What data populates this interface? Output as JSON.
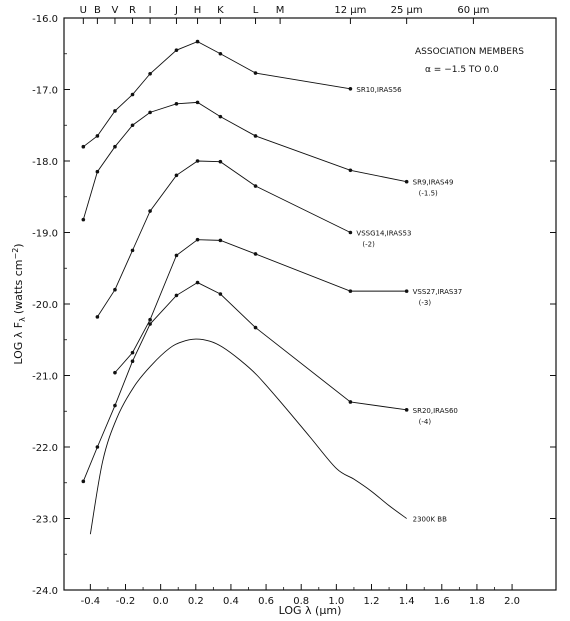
{
  "chart_data": {
    "type": "line",
    "xlabel": "LOG λ (μm)",
    "ylabel": "LOG λ F",
    "ylabel_sub": "λ",
    "ylabel_units": "(watts cm",
    "ylabel_sup": "−2",
    "ylabel_close": ")",
    "xlim": [
      -0.55,
      2.25
    ],
    "ylim": [
      -24.0,
      -16.0
    ],
    "x_ticks": [
      "-0.4",
      "-0.2",
      "0.0",
      "0.2",
      "0.4",
      "0.6",
      "0.8",
      "1.0",
      "1.2",
      "1.4",
      "1.6",
      "1.8",
      "2.0"
    ],
    "x_tick_values": [
      -0.4,
      -0.2,
      0.0,
      0.2,
      0.4,
      0.6,
      0.8,
      1.0,
      1.2,
      1.4,
      1.6,
      1.8,
      2.0
    ],
    "y_ticks": [
      "-16.0",
      "-17.0",
      "-18.0",
      "-19.0",
      "-20.0",
      "-21.0",
      "-22.0",
      "-23.0",
      "-24.0"
    ],
    "y_tick_values": [
      -16.0,
      -17.0,
      -18.0,
      -19.0,
      -20.0,
      -21.0,
      -22.0,
      -23.0,
      -24.0
    ],
    "top_bands": [
      {
        "label": "U",
        "x": -0.44
      },
      {
        "label": "B",
        "x": -0.36
      },
      {
        "label": "V",
        "x": -0.26
      },
      {
        "label": "R",
        "x": -0.16
      },
      {
        "label": "I",
        "x": -0.06
      },
      {
        "label": "J",
        "x": 0.09
      },
      {
        "label": "H",
        "x": 0.21
      },
      {
        "label": "K",
        "x": 0.34
      },
      {
        "label": "L",
        "x": 0.54
      },
      {
        "label": "M",
        "x": 0.68
      },
      {
        "label": "12 μm",
        "x": 1.08
      },
      {
        "label": "25 μm",
        "x": 1.4
      },
      {
        "label": "60 μm",
        "x": 1.78
      }
    ],
    "legend": {
      "title": "ASSOCIATION MEMBERS",
      "subtitle": "α = −1.5 TO 0.0",
      "position": "top-right"
    },
    "series": [
      {
        "name": "SR10,IRAS56",
        "note": "",
        "x": [
          -0.44,
          -0.36,
          -0.26,
          -0.16,
          -0.06,
          0.09,
          0.21,
          0.34,
          0.54,
          1.08
        ],
        "y": [
          -17.8,
          -17.65,
          -17.3,
          -17.07,
          -16.78,
          -16.45,
          -16.33,
          -16.5,
          -16.77,
          -16.99
        ]
      },
      {
        "name": "SR9,IRAS49",
        "note": "(-1.5)",
        "x": [
          -0.44,
          -0.36,
          -0.26,
          -0.16,
          -0.06,
          0.09,
          0.21,
          0.34,
          0.54,
          1.08,
          1.4
        ],
        "y": [
          -18.82,
          -18.15,
          -17.8,
          -17.5,
          -17.32,
          -17.2,
          -17.18,
          -17.38,
          -17.65,
          -18.13,
          -18.29
        ]
      },
      {
        "name": "VSSG14,IRAS53",
        "note": "(-2)",
        "x": [
          -0.36,
          -0.26,
          -0.16,
          -0.06,
          0.09,
          0.21,
          0.34,
          0.54,
          1.08
        ],
        "y": [
          -20.18,
          -19.8,
          -19.25,
          -18.7,
          -18.2,
          -18.0,
          -18.01,
          -18.35,
          -19.0
        ]
      },
      {
        "name": "VSS27,IRAS37",
        "note": "(-3)",
        "x": [
          -0.26,
          -0.16,
          -0.06,
          0.09,
          0.21,
          0.34,
          0.54,
          1.08,
          1.4
        ],
        "y": [
          -20.96,
          -20.68,
          -20.22,
          -19.32,
          -19.1,
          -19.11,
          -19.3,
          -19.82,
          -19.82
        ]
      },
      {
        "name": "SR20,IRAS60",
        "note": "(-4)",
        "x": [
          -0.44,
          -0.36,
          -0.26,
          -0.16,
          -0.06,
          0.09,
          0.21,
          0.34,
          0.54,
          1.08,
          1.4
        ],
        "y": [
          -22.48,
          -22.0,
          -21.42,
          -20.8,
          -20.28,
          -19.88,
          -19.7,
          -19.86,
          -20.33,
          -21.37,
          -21.48
        ]
      },
      {
        "name": "2300K BB",
        "note": "",
        "x": [
          -0.4,
          -0.33,
          -0.25,
          -0.15,
          -0.05,
          0.05,
          0.12,
          0.2,
          0.28,
          0.35,
          0.45,
          0.55,
          0.7,
          0.85,
          1.0,
          1.1,
          1.2,
          1.3,
          1.4
        ],
        "y": [
          -23.22,
          -22.2,
          -21.6,
          -21.15,
          -20.85,
          -20.62,
          -20.53,
          -20.49,
          -20.52,
          -20.6,
          -20.78,
          -21.0,
          -21.42,
          -21.86,
          -22.3,
          -22.45,
          -22.62,
          -22.82,
          -23.0
        ],
        "smooth": true
      }
    ]
  }
}
